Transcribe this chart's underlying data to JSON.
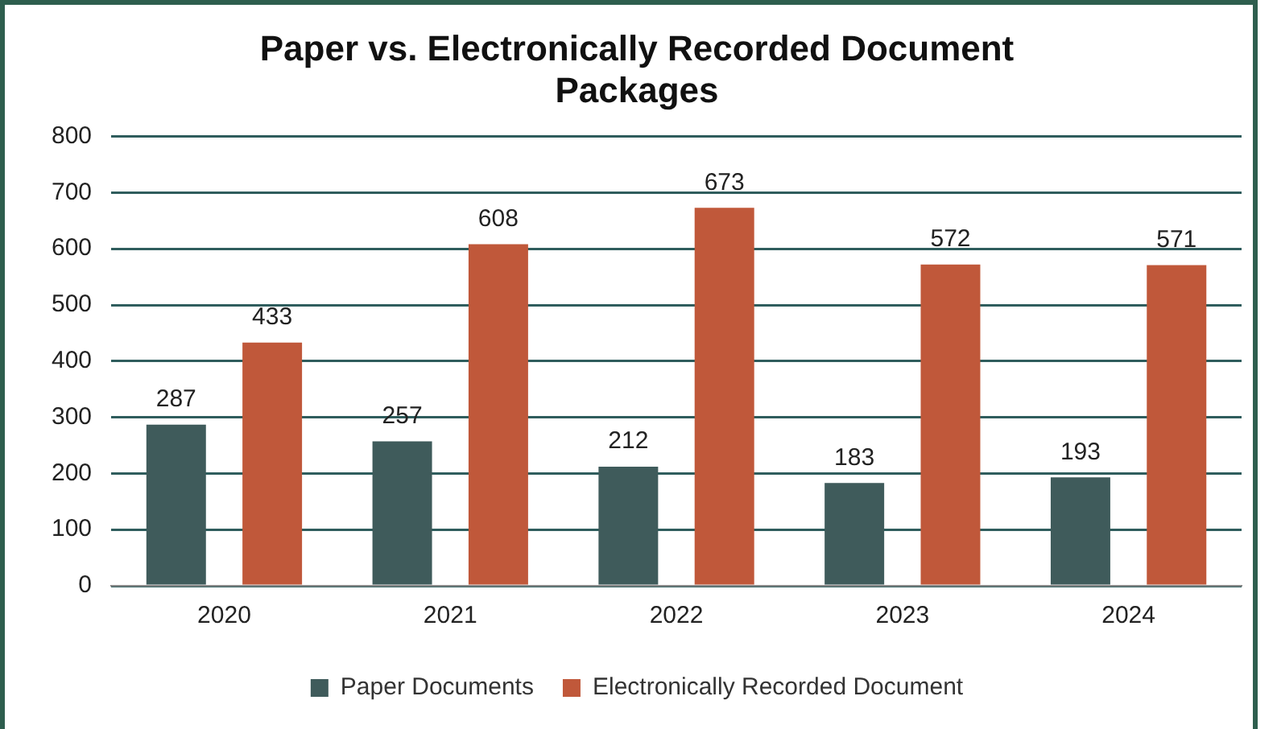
{
  "chart_data": {
    "type": "bar",
    "title": [
      "Paper vs. Electronically Recorded Document",
      "Packages"
    ],
    "categories": [
      "2020",
      "2021",
      "2022",
      "2023",
      "2024"
    ],
    "series": [
      {
        "name": "Paper Documents",
        "color": "#3f5b5b",
        "values": [
          287,
          257,
          212,
          183,
          193
        ]
      },
      {
        "name": "Electronically Recorded Document",
        "color": "#c0583a",
        "values": [
          433,
          608,
          673,
          572,
          571
        ]
      }
    ],
    "ylim": [
      0,
      800
    ],
    "yticks": [
      0,
      100,
      200,
      300,
      400,
      500,
      600,
      700,
      800
    ],
    "grid": "y",
    "legend": "bottom",
    "data_labels": true
  }
}
